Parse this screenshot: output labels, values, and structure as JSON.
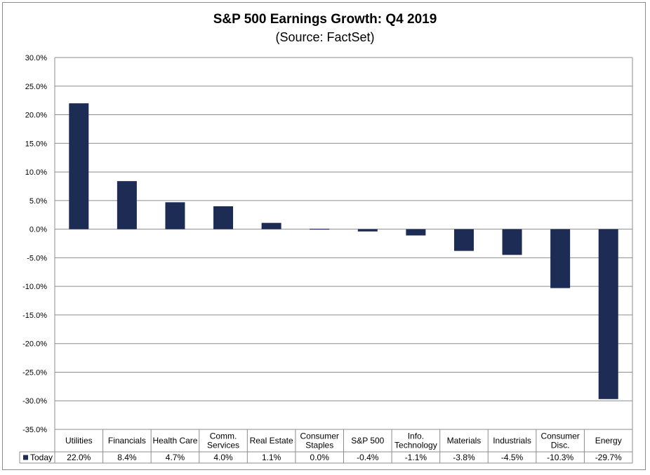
{
  "title": "S&P 500 Earnings Growth: Q4 2019",
  "subtitle": "(Source: FactSet)",
  "colors": {
    "bar": "#1c2c55",
    "grid": "#8c8c8c",
    "text": "#000000"
  },
  "chart_data": {
    "type": "bar",
    "title": "S&P 500 Earnings Growth: Q4 2019",
    "subtitle": "(Source: FactSet)",
    "categories": [
      [
        "Utilities"
      ],
      [
        "Financials"
      ],
      [
        "Health Care"
      ],
      [
        "Comm.",
        "Services"
      ],
      [
        "Real Estate"
      ],
      [
        "Consumer",
        "Staples"
      ],
      [
        "S&P 500"
      ],
      [
        "Info.",
        "Technology"
      ],
      [
        "Materials"
      ],
      [
        "Industrials"
      ],
      [
        "Consumer",
        "Disc."
      ],
      [
        "Energy"
      ]
    ],
    "series": [
      {
        "name": "Today",
        "values": [
          22.0,
          8.4,
          4.7,
          4.0,
          1.1,
          0.0,
          -0.4,
          -1.1,
          -3.8,
          -4.5,
          -10.3,
          -29.7
        ],
        "labels": [
          "22.0%",
          "8.4%",
          "4.7%",
          "4.0%",
          "1.1%",
          "0.0%",
          "-0.4%",
          "-1.1%",
          "-3.8%",
          "-4.5%",
          "-10.3%",
          "-29.7%"
        ]
      }
    ],
    "ylim": [
      -35,
      30
    ],
    "yticks": [
      30,
      25,
      20,
      15,
      10,
      5,
      0,
      -5,
      -10,
      -15,
      -20,
      -25,
      -30,
      -35
    ],
    "ytick_labels": [
      "30.0%",
      "25.0%",
      "20.0%",
      "15.0%",
      "10.0%",
      "5.0%",
      "0.0%",
      "-5.0%",
      "-10.0%",
      "-15.0%",
      "-20.0%",
      "-25.0%",
      "-30.0%",
      "-35.0%"
    ],
    "grid": true,
    "legend": "data-table"
  }
}
